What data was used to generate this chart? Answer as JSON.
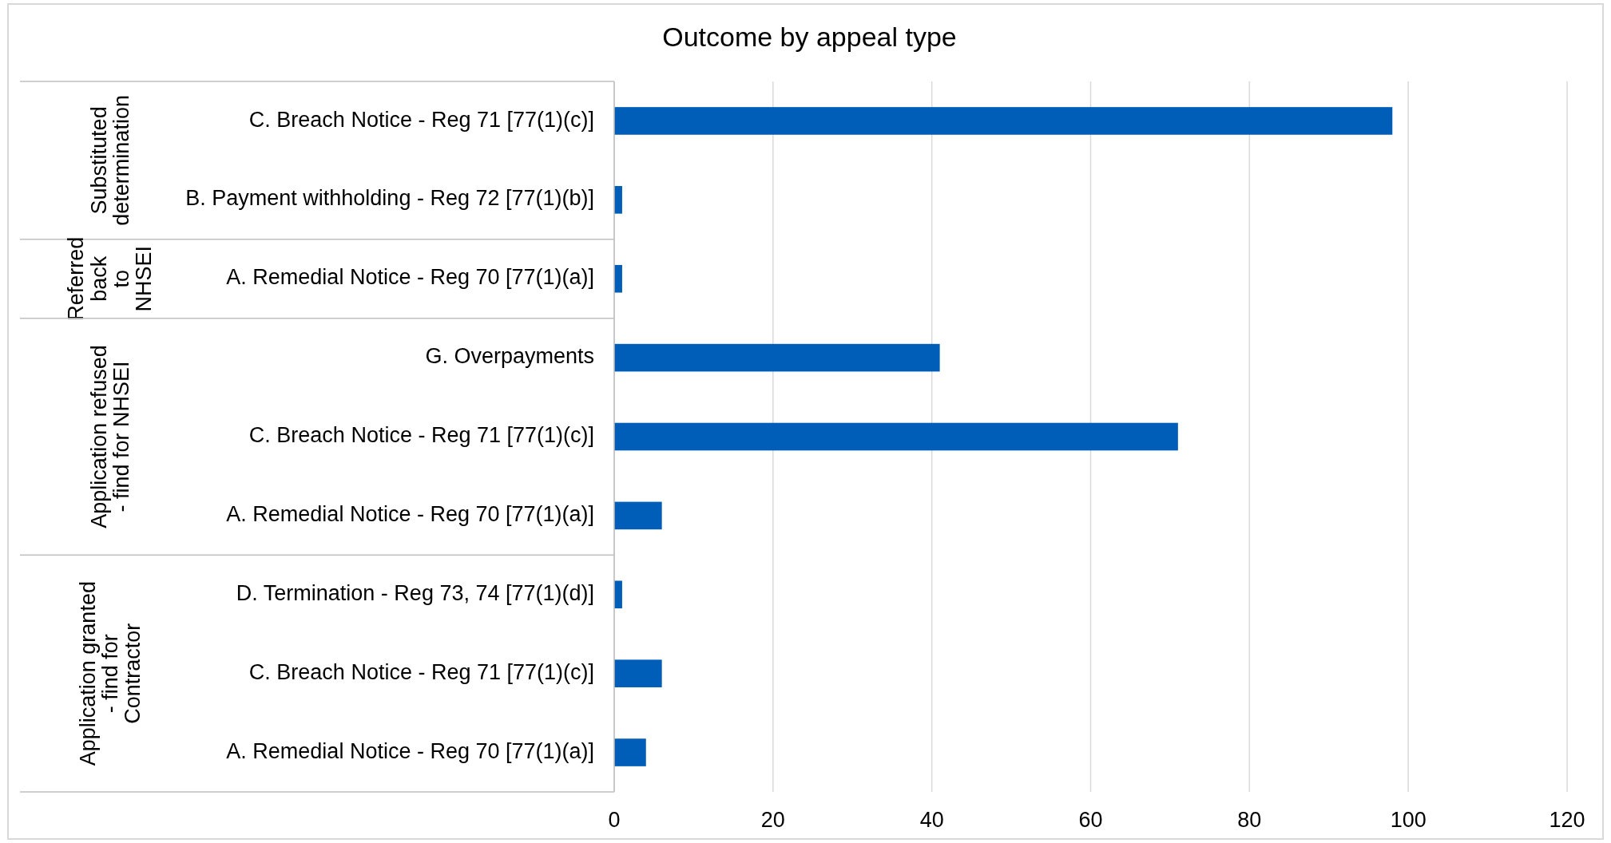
{
  "chart_data": {
    "type": "bar",
    "orientation": "horizontal",
    "title": "Outcome by appeal type",
    "categories": [
      "C. Breach Notice - Reg 71 [77(1)(c)]",
      "B. Payment withholding - Reg 72 [77(1)(b)]",
      "A. Remedial Notice - Reg 70 [77(1)(a)]",
      "G. Overpayments",
      "C. Breach Notice - Reg 71 [77(1)(c)]",
      "A. Remedial Notice - Reg 70 [77(1)(a)]",
      "D. Termination - Reg 73, 74 [77(1)(d)]",
      "C. Breach Notice - Reg 71 [77(1)(c)]",
      "A. Remedial Notice - Reg 70 [77(1)(a)]"
    ],
    "values": [
      98,
      1,
      1,
      41,
      71,
      6,
      1,
      6,
      4
    ],
    "color": "#005eb8",
    "xlim": [
      0,
      120
    ],
    "xticks": [
      0,
      20,
      40,
      60,
      80,
      100,
      120
    ],
    "grid": "x",
    "annotations": [
      "Substituted determination",
      "Referred back to NHSEI",
      "Application refused - find for NHSEI",
      "Application granted - find for Contractor"
    ]
  }
}
